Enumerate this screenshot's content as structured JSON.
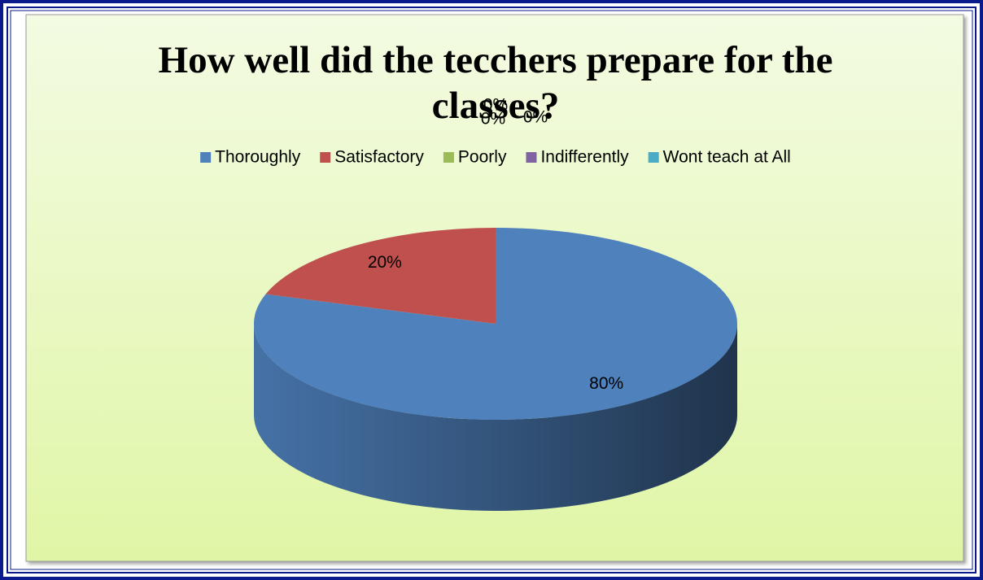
{
  "chart_data": {
    "type": "pie3d",
    "title": "How well did the tecchers prepare for the classes?",
    "categories": [
      "Thoroughly",
      "Satisfactory",
      "Poorly",
      "Indifferently",
      "Wont teach at All"
    ],
    "values": [
      80,
      20,
      0,
      0,
      0
    ],
    "value_labels": [
      "80%",
      "20%",
      "0%",
      "0%",
      "0%"
    ],
    "colors": [
      "#4f81bd",
      "#c0504d",
      "#9bbb59",
      "#8064a2",
      "#4bacc6"
    ],
    "legend": "top"
  }
}
